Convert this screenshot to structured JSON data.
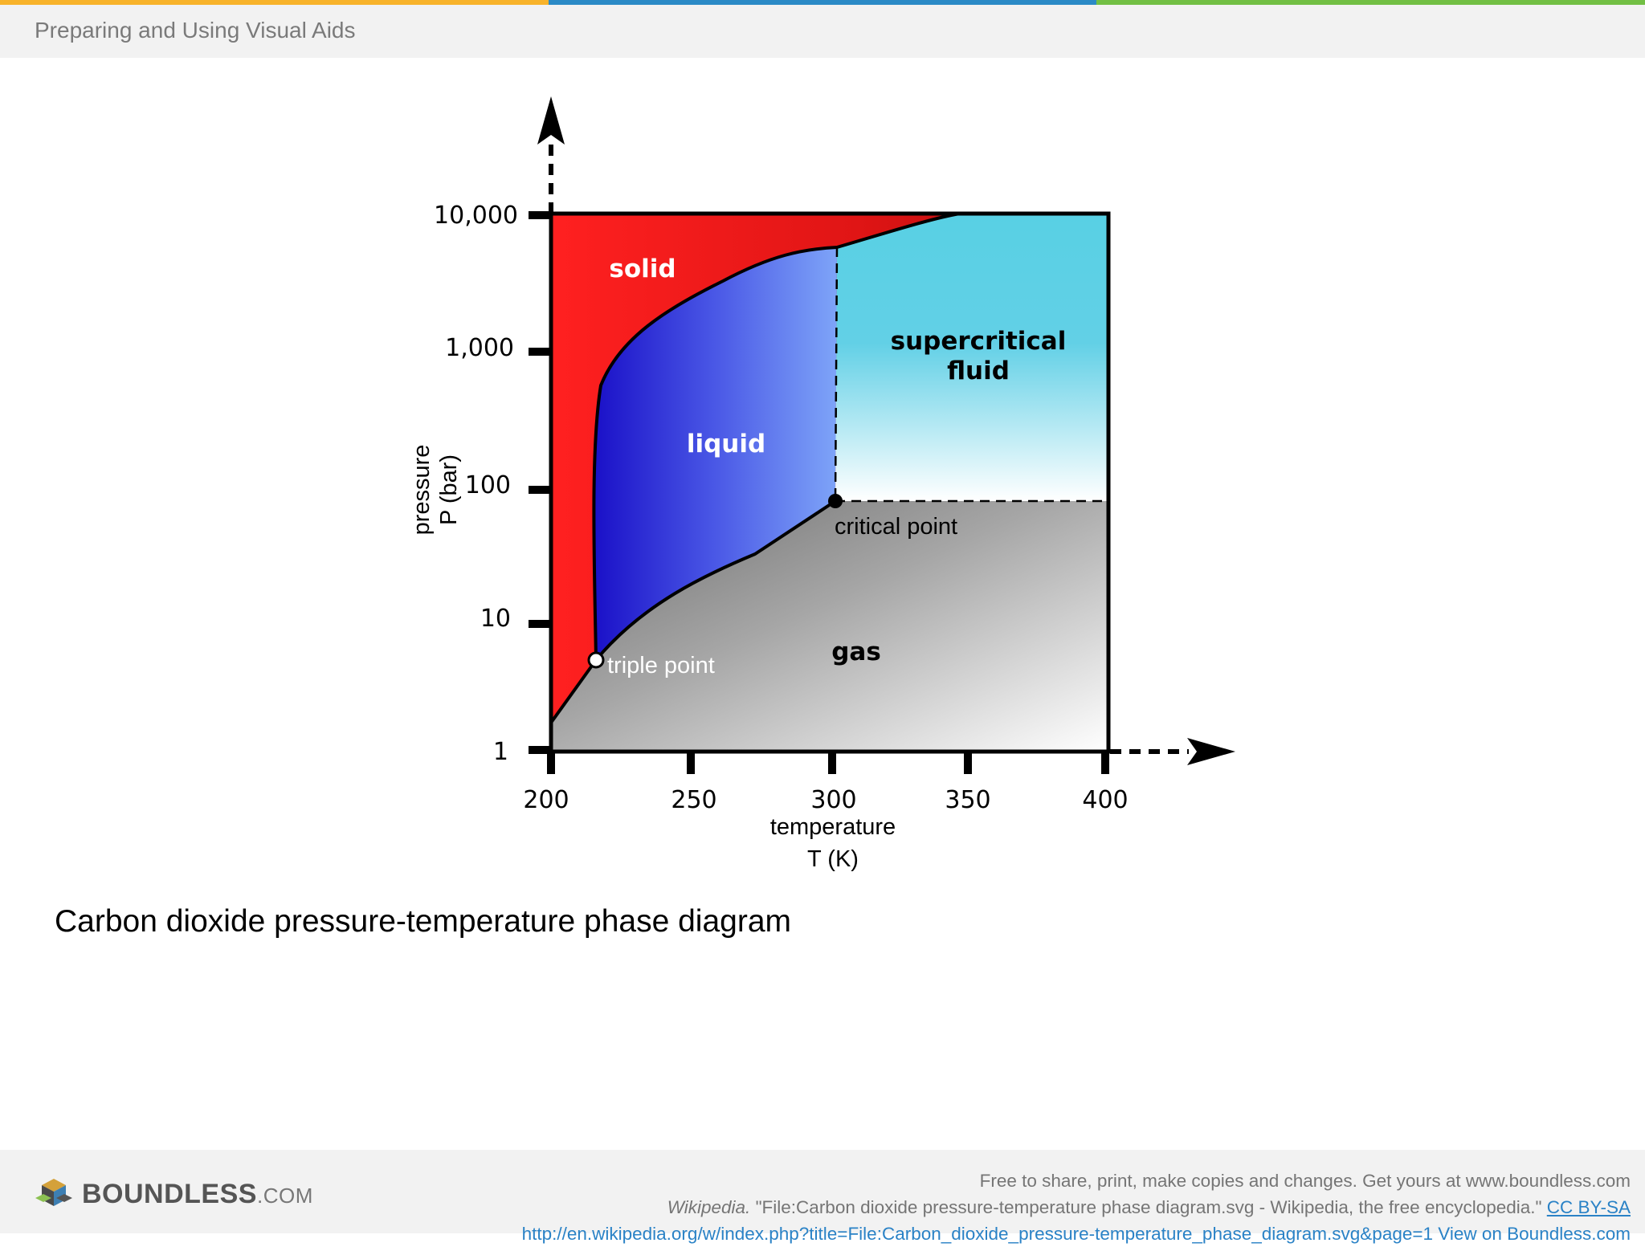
{
  "header": {
    "title": "Preparing and Using Visual Aids",
    "stripe_colors": [
      "#f8b32b",
      "#2b8ac6",
      "#72bf44"
    ]
  },
  "figure": {
    "y_axis": {
      "label_line1": "pressure",
      "label_line2": "P (bar)",
      "ticks": [
        "10,000",
        "1,000",
        "100",
        "10",
        "1"
      ],
      "scale": "log"
    },
    "x_axis": {
      "label_line1": "temperature",
      "label_line2": "T (K)",
      "ticks": [
        "200",
        "250",
        "300",
        "350",
        "400"
      ]
    },
    "regions": {
      "solid": "solid",
      "liquid": "liquid",
      "supercritical_line1": "supercritical",
      "supercritical_line2": "fluid",
      "gas": "gas"
    },
    "points": {
      "critical": "critical point",
      "triple": "triple point"
    },
    "colors": {
      "solid": "#e5191b",
      "liquid": "#2b2bd6",
      "supercritical": "#5fd0e4",
      "gas": "#8a8a8a"
    }
  },
  "caption": "Carbon dioxide pressure-temperature phase diagram",
  "footer": {
    "brand": "BOUNDLESS",
    "brand_suffix": ".COM",
    "line1": "Free to share, print, make copies and changes. Get yours at www.boundless.com",
    "source_italic": "Wikipedia.",
    "source_text": " \"File:Carbon dioxide pressure-temperature phase diagram.svg - Wikipedia, the free encyclopedia.\" ",
    "license": "CC BY-SA",
    "url": "http://en.wikipedia.org/w/index.php?title=File:Carbon_dioxide_pressure-temperature_phase_diagram.svg&page=1",
    "view_link": " View on Boundless.com"
  }
}
